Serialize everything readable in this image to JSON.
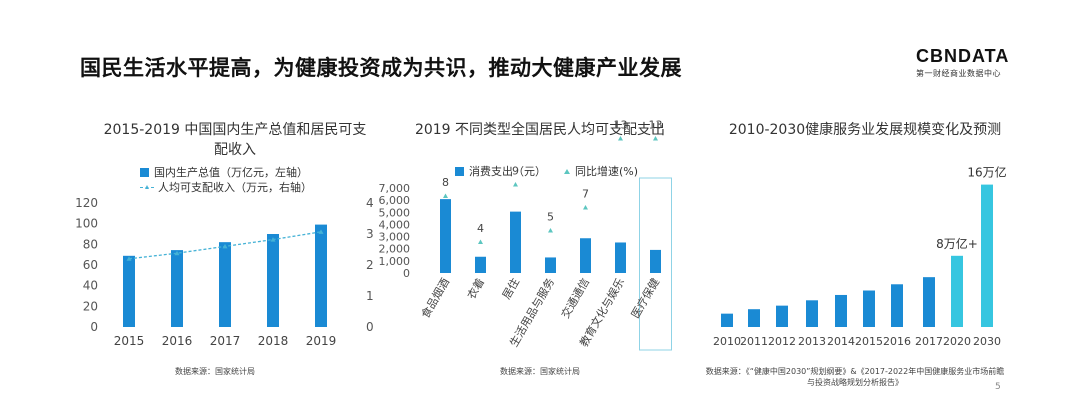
{
  "page": {
    "title": "国民生活水平提高，为健康投资成为共识，推动大健康产业发展",
    "page_number": "5"
  },
  "logo": {
    "name": "CBNDATA",
    "tagline": "第一财经商业数据中心"
  },
  "colors": {
    "bar": "#1a8ad4",
    "line": "#45b2d6",
    "highlight_bar": "#36c6e0",
    "marker": "#5cc6c0"
  },
  "chart_data": [
    {
      "type": "bar",
      "title": "2015-2019 中国国内生产总值和居民可支配收入",
      "categories": [
        "2015",
        "2016",
        "2017",
        "2018",
        "2019"
      ],
      "series": [
        {
          "name": "国内生产总值（万亿元，左轴）",
          "type": "bar",
          "axis": "left",
          "values": [
            68.9,
            74.4,
            82.1,
            90.0,
            99.1
          ]
        },
        {
          "name": "人均可支配收入（万元，右轴）",
          "type": "line",
          "axis": "right",
          "values": [
            2.2,
            2.38,
            2.6,
            2.82,
            3.07
          ]
        }
      ],
      "y_left": {
        "ticks": [
          "0",
          "20",
          "40",
          "60",
          "80",
          "100",
          "120"
        ],
        "ylim": [
          0,
          120
        ]
      },
      "y_right": {
        "ticks": [
          "0",
          "1",
          "2",
          "3",
          "4"
        ],
        "ylim": [
          0,
          4
        ]
      },
      "source": "数据来源：国家统计局"
    },
    {
      "type": "bar",
      "title": "2019 不同类型全国居民人均可支配支出",
      "categories": [
        "食品烟酒",
        "衣着",
        "居住",
        "生活用品与服务",
        "交通通信",
        "教育文化与娱乐",
        "医疗保健"
      ],
      "series": [
        {
          "name": "消费支出（元）",
          "type": "bar",
          "axis": "left",
          "values": [
            6084,
            1338,
            5055,
            1281,
            2862,
            2513,
            1902
          ]
        },
        {
          "name": "同比增速(%)",
          "type": "scatter",
          "axis": "right",
          "values": [
            8,
            4,
            9,
            5,
            7,
            13,
            13
          ]
        }
      ],
      "y_left": {
        "ticks": [
          "0",
          "1,000",
          "2,000",
          "3,000",
          "4,000",
          "5,000",
          "6,000",
          "7,000"
        ],
        "ylim": [
          0,
          7000
        ]
      },
      "highlight_category": "医疗保健",
      "source": "数据来源：国家统计局"
    },
    {
      "type": "bar",
      "title": "2010-2030健康服务业发展规模变化及预测",
      "categories": [
        "2010",
        "2011",
        "2012",
        "2013",
        "2014",
        "2015",
        "2016",
        "2017",
        "2020",
        "2030"
      ],
      "values": [
        1.5,
        2.0,
        2.4,
        3.0,
        3.6,
        4.1,
        4.8,
        5.6,
        8.0,
        16.0
      ],
      "annotations": [
        {
          "category": "2020",
          "text": "8万亿+"
        },
        {
          "category": "2030",
          "text": "16万亿"
        }
      ],
      "highlight_categories": [
        "2020",
        "2030"
      ],
      "source": "数据来源：《“健康中国2030”规划纲要》&《2017-2022年中国健康服务业市场前瞻与投资战略规划分析报告》"
    }
  ]
}
